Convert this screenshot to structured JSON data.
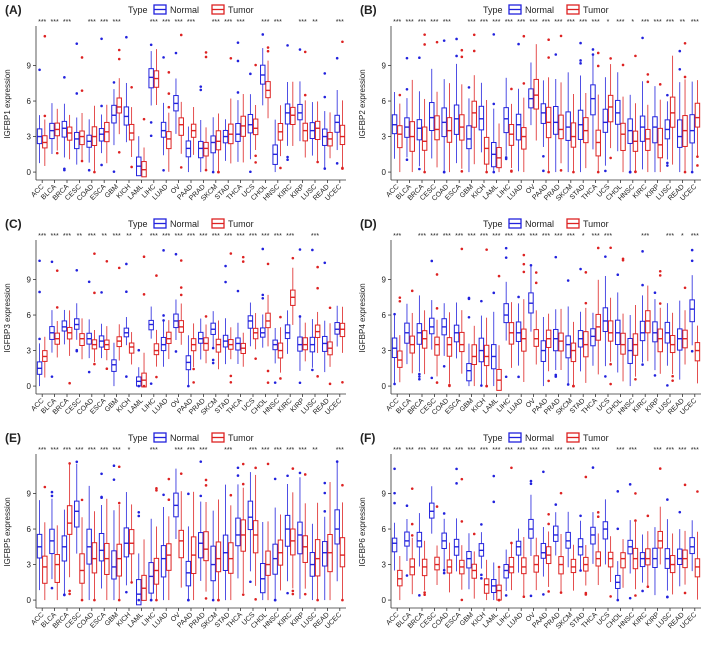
{
  "colors": {
    "normal": "#2222dd",
    "tumor": "#dd2222",
    "axis": "#333333",
    "text": "#222222"
  },
  "chart_data": [
    {
      "type": "boxplot",
      "panel_label": "(A)",
      "ylabel": "IGFBP1 expression",
      "legend": {
        "title": "Type",
        "entries": [
          "Normal",
          "Tumor"
        ],
        "placement": "top"
      },
      "yticks": [
        0,
        3,
        6,
        9
      ],
      "ylim": [
        -0.5,
        12
      ],
      "categories": [
        "ACC",
        "BLCA",
        "BRCA",
        "CESC",
        "COAD",
        "ESCA",
        "GBM",
        "KICH",
        "LAML",
        "LIHC",
        "LUAD",
        "OV",
        "PAAD",
        "PRAD",
        "SKCM",
        "STAD",
        "THCA",
        "UCS",
        "CHOL",
        "HNSC",
        "KIRC",
        "KIRP",
        "LUSC",
        "READ",
        "UCEC"
      ],
      "significance": [
        "***",
        "***",
        "***",
        "",
        "***",
        "***",
        "***",
        "",
        "",
        "***",
        "***",
        "***",
        "***",
        "",
        "***",
        "***",
        "***",
        "",
        "***",
        "***",
        "",
        "***",
        "**",
        "",
        "***"
      ],
      "series": [
        {
          "name": "Normal",
          "medians": [
            3.0,
            3.5,
            3.7,
            2.8,
            2.6,
            3.2,
            4.8,
            4.7,
            0.5,
            8.0,
            3.5,
            5.8,
            2.0,
            2.0,
            2.5,
            3.0,
            3.2,
            4.0,
            8.2,
            1.5,
            5.0,
            5.0,
            3.5,
            3.0,
            4.2
          ]
        },
        {
          "name": "Tumor",
          "medians": [
            2.5,
            3.6,
            3.3,
            3.0,
            3.0,
            3.4,
            5.5,
            3.3,
            0.2,
            7.9,
            2.8,
            4.0,
            3.5,
            2.0,
            2.6,
            3.2,
            3.9,
            3.7,
            6.9,
            3.4,
            4.8,
            3.5,
            3.7,
            2.8,
            3.0
          ]
        }
      ]
    },
    {
      "type": "boxplot",
      "panel_label": "(B)",
      "ylabel": "IGFBP2 expression",
      "legend": {
        "title": "Type",
        "entries": [
          "Normal",
          "Tumor"
        ],
        "placement": "top"
      },
      "yticks": [
        0,
        3,
        6,
        9
      ],
      "ylim": [
        -0.5,
        12
      ],
      "categories": [
        "ACC",
        "BLCA",
        "BRCA",
        "CESC",
        "COAD",
        "ESCA",
        "GBM",
        "KICH",
        "LAML",
        "LIHC",
        "LUAD",
        "OV",
        "PAAD",
        "PRAD",
        "SKCM",
        "STAD",
        "THCA",
        "UCS",
        "CHOL",
        "HNSC",
        "KIRC",
        "KIRP",
        "LUSC",
        "READ",
        "UCEC"
      ],
      "significance": [
        "***",
        "***",
        "***",
        "***",
        "***",
        "",
        "***",
        "***",
        "***",
        "***",
        "***",
        "***",
        "***",
        "***",
        "***",
        "***",
        "***",
        "*",
        "***",
        "*",
        "***",
        "***",
        "***",
        "**",
        "***"
      ],
      "series": [
        {
          "name": "Normal",
          "medians": [
            4.0,
            3.8,
            3.7,
            4.6,
            4.2,
            4.5,
            2.8,
            4.5,
            1.5,
            4.5,
            4.0,
            6.2,
            5.0,
            4.2,
            3.8,
            4.0,
            6.2,
            4.2,
            5.0,
            3.5,
            3.8,
            3.8,
            3.6,
            3.0,
            3.5
          ]
        },
        {
          "name": "Tumor",
          "medians": [
            3.2,
            3.0,
            2.6,
            3.6,
            3.5,
            3.8,
            5.0,
            2.0,
            1.2,
            3.2,
            3.0,
            6.5,
            4.2,
            3.6,
            3.0,
            3.5,
            2.5,
            5.5,
            3.2,
            2.6,
            2.8,
            2.3,
            5.0,
            3.5,
            4.6
          ]
        }
      ]
    },
    {
      "type": "boxplot",
      "panel_label": "(C)",
      "ylabel": "IGFBP3 expression",
      "legend": {
        "title": "Type",
        "entries": [
          "Normal",
          "Tumor"
        ],
        "placement": "top"
      },
      "yticks": [
        0,
        3,
        6,
        9
      ],
      "ylim": [
        -0.5,
        12
      ],
      "categories": [
        "ACC",
        "BLCA",
        "BRCA",
        "CESC",
        "COAD",
        "ESCA",
        "GBM",
        "KICH",
        "LAML",
        "LIHC",
        "LUAD",
        "OV",
        "PAAD",
        "PRAD",
        "SKCM",
        "STAD",
        "THCA",
        "UCS",
        "CHOL",
        "HNSC",
        "KIRC",
        "KIRP",
        "LUSC",
        "READ",
        "UCEC"
      ],
      "significance": [
        "***",
        "***",
        "***",
        "**",
        "***",
        "**",
        "***",
        "**",
        "*",
        "***",
        "***",
        "***",
        "***",
        "***",
        "***",
        "***",
        "***",
        "***",
        "***",
        "***",
        "***",
        "",
        "***",
        "",
        ""
      ],
      "series": [
        {
          "name": "Normal",
          "medians": [
            1.5,
            4.5,
            5.0,
            5.2,
            4.0,
            3.8,
            1.8,
            4.5,
            0.4,
            5.2,
            3.5,
            5.5,
            2.0,
            4.0,
            4.8,
            3.8,
            3.6,
            5.5,
            4.5,
            3.5,
            4.5,
            3.5,
            3.5,
            3.6,
            4.8
          ]
        },
        {
          "name": "Tumor",
          "medians": [
            2.5,
            4.0,
            4.5,
            4.0,
            3.5,
            3.5,
            3.8,
            3.3,
            0.5,
            3.0,
            4.0,
            5.0,
            3.5,
            3.6,
            3.5,
            3.5,
            3.2,
            4.5,
            5.5,
            3.0,
            7.5,
            3.5,
            4.6,
            3.2,
            4.8
          ]
        }
      ]
    },
    {
      "type": "boxplot",
      "panel_label": "(D)",
      "ylabel": "IGFBP4 expression",
      "legend": {
        "title": "Type",
        "entries": [
          "Normal",
          "Tumor"
        ],
        "placement": "top"
      },
      "yticks": [
        0,
        3,
        6,
        9
      ],
      "ylim": [
        -0.5,
        12
      ],
      "categories": [
        "ACC",
        "BLCA",
        "BRCA",
        "CESC",
        "COAD",
        "ESCA",
        "GBM",
        "KICH",
        "LAML",
        "LIHC",
        "LUAD",
        "OV",
        "PAAD",
        "PRAD",
        "SKCM",
        "STAD",
        "THCA",
        "UCS",
        "CHOL",
        "HNSC",
        "KIRC",
        "KIRP",
        "LUSC",
        "READ",
        "UCEC"
      ],
      "significance": [
        "***",
        "",
        "***",
        "***",
        "***",
        "***",
        "***",
        "***",
        "***",
        "***",
        "***",
        "***",
        "***",
        "***",
        "***",
        "*",
        "***",
        "***",
        "",
        "",
        "***",
        "",
        "***",
        "*",
        "***"
      ],
      "series": [
        {
          "name": "Normal",
          "medians": [
            3.2,
            4.5,
            4.5,
            5.0,
            5.0,
            4.5,
            1.3,
            3.0,
            2.5,
            6.0,
            4.5,
            7.0,
            3.0,
            4.0,
            3.5,
            4.0,
            4.2,
            5.5,
            4.5,
            3.0,
            4.5,
            4.5,
            4.5,
            4.0,
            6.5
          ]
        },
        {
          "name": "Tumor",
          "medians": [
            2.2,
            3.5,
            4.0,
            3.5,
            3.5,
            3.5,
            2.5,
            2.5,
            0.5,
            4.5,
            4.0,
            4.0,
            4.0,
            3.8,
            3.0,
            3.5,
            5.0,
            4.5,
            3.5,
            3.5,
            5.5,
            4.0,
            3.5,
            4.0,
            3.0
          ]
        }
      ]
    },
    {
      "type": "boxplot",
      "panel_label": "(E)",
      "ylabel": "IGFBP5 expression",
      "legend": {
        "title": "Type",
        "entries": [
          "Normal",
          "Tumor"
        ],
        "placement": "top"
      },
      "yticks": [
        0,
        3,
        6,
        9
      ],
      "ylim": [
        -0.5,
        12
      ],
      "categories": [
        "ACC",
        "BLCA",
        "BRCA",
        "CESC",
        "COAD",
        "ESCA",
        "GBM",
        "KICH",
        "LAML",
        "LIHC",
        "LUAD",
        "OV",
        "PAAD",
        "PRAD",
        "SKCM",
        "STAD",
        "THCA",
        "UCS",
        "CHOL",
        "HNSC",
        "KIRC",
        "KIRP",
        "LUSC",
        "READ",
        "UCEC"
      ],
      "significance": [
        "***",
        "***",
        "***",
        "***",
        "***",
        "***",
        "***",
        "*",
        "",
        "***",
        "",
        "***",
        "***",
        "***",
        "",
        "***",
        "",
        "***",
        "***",
        "***",
        "***",
        "***",
        "**",
        "",
        "***"
      ],
      "series": [
        {
          "name": "Normal",
          "medians": [
            4.5,
            5.0,
            4.5,
            7.5,
            4.5,
            4.2,
            2.8,
            4.8,
            0.5,
            2.0,
            3.5,
            8.0,
            2.3,
            4.8,
            3.0,
            4.0,
            5.5,
            7.0,
            1.8,
            3.5,
            6.0,
            5.5,
            3.0,
            4.0,
            6.0
          ]
        },
        {
          "name": "Tumor",
          "medians": [
            2.8,
            3.0,
            6.5,
            2.5,
            3.5,
            3.5,
            3.5,
            4.8,
            1.0,
            2.5,
            3.8,
            5.0,
            3.8,
            4.3,
            3.5,
            3.5,
            5.5,
            5.5,
            3.0,
            4.0,
            5.0,
            4.5,
            3.5,
            4.0,
            3.8
          ]
        }
      ]
    },
    {
      "type": "boxplot",
      "panel_label": "(F)",
      "ylabel": "IGFBP6 expression",
      "legend": {
        "title": "Type",
        "entries": [
          "Normal",
          "Tumor"
        ],
        "placement": "top"
      },
      "yticks": [
        0,
        3,
        6,
        9
      ],
      "ylim": [
        -0.5,
        12
      ],
      "categories": [
        "ACC",
        "BLCA",
        "BRCA",
        "CESC",
        "COAD",
        "ESCA",
        "GBM",
        "KICH",
        "LAML",
        "LIHC",
        "LUAD",
        "OV",
        "PAAD",
        "PRAD",
        "SKCM",
        "STAD",
        "THCA",
        "UCS",
        "CHOL",
        "HNSC",
        "KIRC",
        "KIRP",
        "LUSC",
        "READ",
        "UCEC"
      ],
      "significance": [
        "***",
        "***",
        "***",
        "***",
        "***",
        "***",
        "***",
        "***",
        "***",
        "***",
        "***",
        "***",
        "***",
        "***",
        "***",
        "***",
        "***",
        "",
        "***",
        "***",
        "",
        "***",
        "***",
        "***",
        "***"
      ],
      "series": [
        {
          "name": "Normal",
          "medians": [
            4.8,
            5.0,
            5.0,
            7.5,
            5.0,
            4.5,
            3.5,
            4.2,
            1.2,
            2.5,
            4.5,
            6.0,
            4.0,
            5.5,
            5.0,
            4.5,
            5.5,
            6.0,
            1.5,
            4.5,
            3.5,
            3.5,
            3.5,
            3.5,
            4.5
          ]
        },
        {
          "name": "Tumor",
          "medians": [
            1.8,
            2.8,
            2.8,
            3.0,
            2.8,
            2.8,
            2.5,
            1.3,
            0.8,
            2.8,
            2.8,
            3.0,
            3.8,
            3.0,
            2.8,
            3.0,
            3.5,
            3.5,
            3.5,
            3.5,
            3.5,
            5.0,
            3.0,
            3.5,
            2.8
          ]
        }
      ]
    }
  ]
}
